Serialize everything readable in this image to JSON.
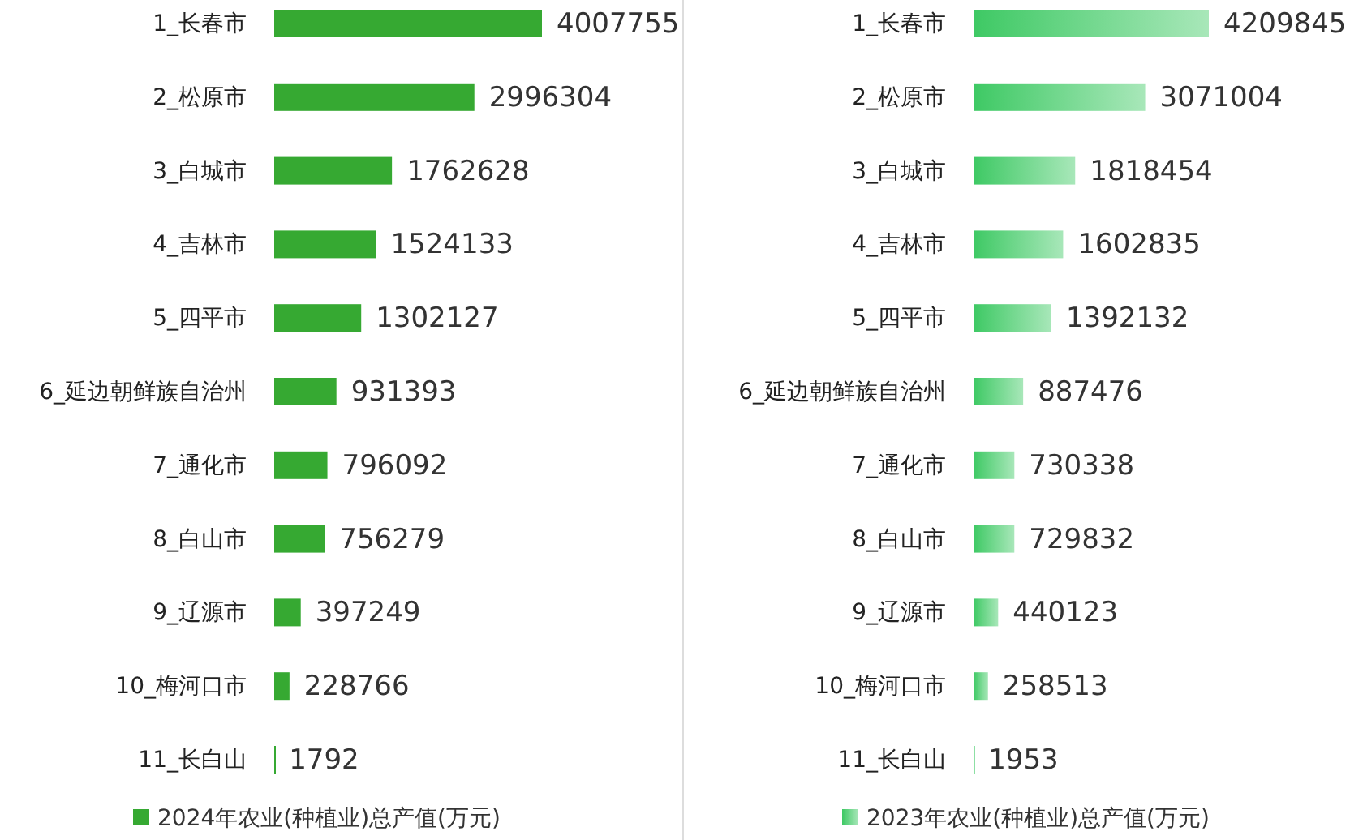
{
  "chart_data": [
    {
      "type": "bar",
      "orientation": "horizontal",
      "categories": [
        "1_长春市",
        "2_松原市",
        "3_白城市",
        "4_吉林市",
        "5_四平市",
        "6_延边朝鲜族自治州",
        "7_通化市",
        "8_白山市",
        "9_辽源市",
        "10_梅河口市",
        "11_长白山"
      ],
      "series": [
        {
          "name": "2024年农业(种植业)总产值(万元)",
          "color": "#36a932",
          "values": [
            4007755,
            2996304,
            1762628,
            1524133,
            1302127,
            931393,
            796092,
            756279,
            397249,
            228766,
            1792
          ]
        }
      ],
      "data_labels": true,
      "legend": "bottom",
      "tick_labels": "y"
    },
    {
      "type": "bar",
      "orientation": "horizontal",
      "categories": [
        "1_长春市",
        "2_松原市",
        "3_白城市",
        "4_吉林市",
        "5_四平市",
        "6_延边朝鲜族自治州",
        "7_通化市",
        "8_白山市",
        "9_辽源市",
        "10_梅河口市",
        "11_长白山"
      ],
      "series": [
        {
          "name": "2023年农业(种植业)总产值(万元)",
          "color": "#3ec964",
          "values": [
            4209845,
            3071004,
            1818454,
            1602835,
            1392132,
            887476,
            730338,
            729832,
            440123,
            258513,
            1953
          ]
        }
      ],
      "data_labels": true,
      "legend": "bottom",
      "tick_labels": "y"
    }
  ]
}
